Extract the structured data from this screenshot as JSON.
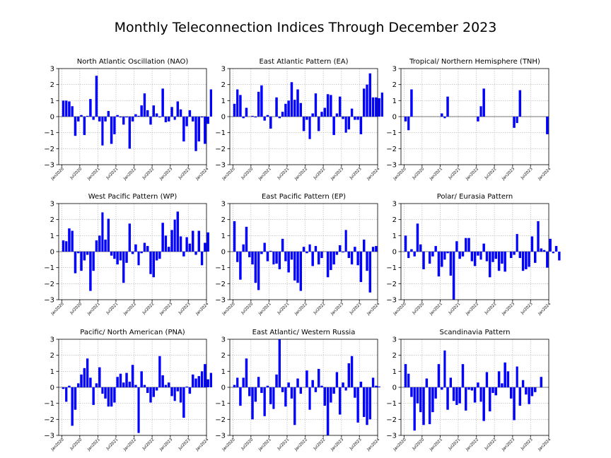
{
  "suptitle": "Monthly Teleconnection Indices Through December 2023",
  "style": {
    "bar_color": "#0000ff",
    "grid_color": "#b0b0b0",
    "axis_color": "#000000"
  },
  "chart_data": [
    {
      "type": "bar",
      "title": "North Atlantic Oscillation (NAO)",
      "ylim": [
        -3,
        3
      ],
      "yticks": [
        -3,
        -2,
        -1,
        0,
        1,
        2,
        3
      ],
      "xlim": [
        "2019-12-01",
        "2024-01-01"
      ],
      "xticks": [
        "Jan2020",
        "Jul2020",
        "Jan2021",
        "Jul2021",
        "Jan2022",
        "Jul2022",
        "Jan2023",
        "Jul2023",
        "Jan2024"
      ],
      "grid": true,
      "start_month": "2020-01",
      "values": [
        1.0,
        1.0,
        0.95,
        0.65,
        -1.2,
        -0.3,
        0.1,
        -1.15,
        0.05,
        1.1,
        -0.2,
        2.55,
        -0.3,
        -1.8,
        -0.3,
        0.35,
        -1.7,
        -1.1,
        0.1,
        -0.05,
        -0.5,
        -0.05,
        -2.0,
        -0.3,
        0.15,
        0.05,
        0.7,
        1.45,
        0.4,
        -0.5,
        0.7,
        0.2,
        -0.05,
        1.75,
        -0.35,
        -0.3,
        0.6,
        -0.2,
        0.95,
        0.45,
        -1.55,
        -0.6,
        0.4,
        -0.3,
        -2.15,
        -1.55,
        -0.05,
        -1.7,
        -0.45,
        1.7
      ]
    },
    {
      "type": "bar",
      "title": "East Atlantic Pattern (EA)",
      "ylim": [
        -3,
        3
      ],
      "yticks": [
        -3,
        -2,
        -1,
        0,
        1,
        2,
        3
      ],
      "xlim": [
        "2019-12-01",
        "2024-01-01"
      ],
      "xticks": [
        "Jan2020",
        "Jul2020",
        "Jan2021",
        "Jul2021",
        "Jan2022",
        "Jul2022",
        "Jan2023",
        "Jul2023",
        "Jan2024"
      ],
      "grid": true,
      "start_month": "2020-01",
      "values": [
        0.8,
        1.7,
        1.35,
        -0.1,
        0.55,
        0.0,
        0.05,
        -0.05,
        1.55,
        1.95,
        -0.25,
        0.1,
        -0.75,
        0.0,
        1.2,
        -0.1,
        0.3,
        0.8,
        1.0,
        2.15,
        1.05,
        1.7,
        0.85,
        -0.9,
        -0.2,
        -1.4,
        0.2,
        1.45,
        -0.9,
        0.3,
        0.55,
        1.4,
        1.35,
        -1.15,
        0.2,
        1.25,
        -0.15,
        -1.0,
        -0.8,
        0.5,
        -0.2,
        -0.2,
        -1.1,
        1.75,
        2.0,
        2.7,
        1.2,
        1.2,
        1.15,
        1.5
      ]
    },
    {
      "type": "bar",
      "title": "Tropical/ Northern Hemisphere (TNH)",
      "ylim": [
        -3,
        3
      ],
      "yticks": [
        -3,
        -2,
        -1,
        0,
        1,
        2,
        3
      ],
      "xlim": [
        "2019-12-01",
        "2024-01-01"
      ],
      "xticks": [
        "Jan2020",
        "Jul2020",
        "Jan2021",
        "Jul2021",
        "Jan2022",
        "Jul2022",
        "Jan2023",
        "Jul2023",
        "Jan2024"
      ],
      "grid": true,
      "start_month": "2020-01",
      "values": [
        -0.3,
        -0.85,
        1.7,
        0,
        0,
        0,
        0,
        0,
        0,
        0,
        0,
        0,
        0.2,
        -0.1,
        1.25,
        0,
        0,
        0,
        0,
        0,
        0,
        0,
        0,
        0,
        -0.3,
        0.65,
        1.75,
        0,
        0,
        0,
        0,
        0,
        0,
        0,
        0,
        0,
        -0.7,
        -0.4,
        1.65,
        0,
        0,
        0,
        0,
        0,
        0,
        0,
        0,
        -1.1
      ]
    },
    {
      "type": "bar",
      "title": "West Pacific Pattern (WP)",
      "ylim": [
        -3,
        3
      ],
      "yticks": [
        -3,
        -2,
        -1,
        0,
        1,
        2,
        3
      ],
      "xlim": [
        "2019-12-01",
        "2024-01-01"
      ],
      "xticks": [
        "Jan2020",
        "Jul2020",
        "Jan2021",
        "Jul2021",
        "Jan2022",
        "Jul2022",
        "Jan2023",
        "Jul2023",
        "Jan2024"
      ],
      "grid": true,
      "start_month": "2020-01",
      "values": [
        0.7,
        0.65,
        1.45,
        1.3,
        -1.35,
        -0.1,
        -1.2,
        -0.55,
        -0.2,
        -2.45,
        -1.2,
        0.7,
        1.0,
        2.45,
        0.75,
        2.05,
        -0.25,
        -0.45,
        -0.8,
        -0.55,
        -1.95,
        -0.7,
        1.75,
        -0.15,
        0.45,
        -0.85,
        -0.1,
        0.55,
        0.35,
        -1.4,
        -1.6,
        -0.55,
        -0.45,
        1.8,
        1.0,
        0.3,
        1.35,
        2.0,
        2.5,
        0.95,
        -0.3,
        0.9,
        0.5,
        1.3,
        -0.2,
        1.3,
        -0.85,
        0.55,
        1.2
      ]
    },
    {
      "type": "bar",
      "title": "East Pacific Pattern (EP)",
      "ylim": [
        -3,
        3
      ],
      "yticks": [
        -3,
        -2,
        -1,
        0,
        1,
        2,
        3
      ],
      "xlim": [
        "2019-12-01",
        "2024-01-01"
      ],
      "xticks": [
        "Jan2020",
        "Jul2020",
        "Jan2021",
        "Jul2021",
        "Jan2022",
        "Jul2022",
        "Jan2023",
        "Jul2023",
        "Jan2024"
      ],
      "grid": true,
      "start_month": "2020-01",
      "values": [
        1.9,
        -0.65,
        -1.75,
        0.45,
        1.55,
        -0.35,
        -0.8,
        -1.95,
        -2.4,
        -0.15,
        0.55,
        -0.6,
        0.05,
        -0.8,
        -0.75,
        -1.1,
        0.8,
        -0.6,
        -1.3,
        -0.5,
        -1.8,
        -1.95,
        -2.45,
        0.3,
        -0.1,
        0.45,
        -0.9,
        0.35,
        -0.8,
        -0.4,
        0.0,
        -1.6,
        -1.15,
        -0.8,
        -0.2,
        0.4,
        -0.05,
        1.35,
        -0.4,
        -0.8,
        0.3,
        -0.85,
        -1.9,
        0.75,
        -1.2,
        -2.55,
        0.3,
        0.35
      ]
    },
    {
      "type": "bar",
      "title": "Polar/ Eurasia Pattern",
      "ylim": [
        -3,
        3
      ],
      "yticks": [
        -3,
        -2,
        -1,
        0,
        1,
        2,
        3
      ],
      "xlim": [
        "2019-12-01",
        "2024-01-01"
      ],
      "xticks": [
        "Jan2020",
        "Jul2020",
        "Jan2021",
        "Jul2021",
        "Jan2022",
        "Jul2022",
        "Jan2023",
        "Jul2023",
        "Jan2024"
      ],
      "grid": true,
      "start_month": "2020-01",
      "values": [
        1.0,
        -0.4,
        0.15,
        -0.3,
        1.75,
        0.45,
        -1.1,
        0.0,
        -0.75,
        -0.3,
        0.35,
        -1.55,
        -0.95,
        -0.5,
        -0.1,
        -1.5,
        -3.0,
        0.65,
        -0.45,
        -0.3,
        0.85,
        0.85,
        -0.6,
        -0.9,
        -0.25,
        -0.5,
        0.5,
        -0.6,
        -1.6,
        -0.65,
        -0.45,
        -1.2,
        -0.75,
        -1.25,
        0.0,
        -0.4,
        -0.2,
        1.1,
        -0.4,
        -1.2,
        -1.1,
        -0.95,
        0.95,
        -0.7,
        1.9,
        0.2,
        0.1,
        -1.0,
        0.8,
        -0.1,
        0.35,
        -0.55
      ]
    },
    {
      "type": "bar",
      "title": "Pacific/ North American (PNA)",
      "ylim": [
        -3,
        3
      ],
      "yticks": [
        -3,
        -2,
        -1,
        0,
        1,
        2,
        3
      ],
      "xlim": [
        "2019-12-01",
        "2024-01-01"
      ],
      "xticks": [
        "Jan2020",
        "Jul2020",
        "Jan2021",
        "Jul2021",
        "Jan2022",
        "Jul2022",
        "Jan2023",
        "Jul2023",
        "Jan2024"
      ],
      "grid": true,
      "start_month": "2020-01",
      "values": [
        -0.1,
        -0.9,
        0.1,
        -2.4,
        -1.4,
        0.25,
        0.8,
        1.2,
        1.8,
        0.6,
        -1.1,
        0.25,
        1.25,
        -0.4,
        -0.7,
        -1.2,
        -1.2,
        -0.95,
        0.65,
        0.85,
        0.3,
        0.9,
        0.35,
        1.4,
        0.15,
        -2.85,
        1.0,
        0.15,
        -0.35,
        -0.95,
        -0.6,
        -0.2,
        1.95,
        0.75,
        0.15,
        0.3,
        -0.55,
        -0.85,
        -0.25,
        -0.95,
        -1.9,
        0.05,
        -0.4,
        0.8,
        0.55,
        0.7,
        1.0,
        1.45,
        0.5,
        0.9
      ]
    },
    {
      "type": "bar",
      "title": "East Atlantic/ Western Russia",
      "ylim": [
        -3,
        3
      ],
      "yticks": [
        -3,
        -2,
        -1,
        0,
        1,
        2,
        3
      ],
      "xlim": [
        "2019-12-01",
        "2024-01-01"
      ],
      "xticks": [
        "Jan2020",
        "Jul2020",
        "Jan2021",
        "Jul2021",
        "Jan2022",
        "Jul2022",
        "Jan2023",
        "Jul2023",
        "Jan2024"
      ],
      "grid": true,
      "start_month": "2020-01",
      "values": [
        0.15,
        0.6,
        -1.15,
        0.6,
        1.8,
        -0.55,
        -2.0,
        -0.9,
        0.65,
        -0.35,
        -1.8,
        0.1,
        -1.05,
        -1.35,
        0.8,
        3.0,
        -0.3,
        -1.2,
        0.3,
        -0.7,
        -2.35,
        0.55,
        -0.4,
        0.0,
        1.05,
        -1.4,
        0.45,
        -0.3,
        1.15,
        0.1,
        -1.15,
        -3.0,
        -0.95,
        -0.4,
        0.95,
        -1.7,
        0.3,
        -0.2,
        1.5,
        1.95,
        -0.65,
        -2.2,
        0.35,
        -1.85,
        -2.35,
        -2.0,
        0.6,
        0.1,
        0.05
      ]
    },
    {
      "type": "bar",
      "title": "Scandinavia Pattern",
      "ylim": [
        -3,
        3
      ],
      "yticks": [
        -3,
        -2,
        -1,
        0,
        1,
        2,
        3
      ],
      "xlim": [
        "2019-12-01",
        "2024-01-01"
      ],
      "xticks": [
        "Jan2020",
        "Jul2020",
        "Jan2021",
        "Jul2021",
        "Jan2022",
        "Jul2022",
        "Jan2023",
        "Jul2023",
        "Jan2024"
      ],
      "grid": true,
      "start_month": "2020-01",
      "values": [
        1.45,
        0.85,
        -0.6,
        -2.7,
        -1.0,
        -1.55,
        -2.35,
        0.55,
        -2.3,
        -1.55,
        -0.7,
        1.45,
        -0.15,
        2.3,
        -1.4,
        0.6,
        -0.85,
        -1.1,
        -1.0,
        1.45,
        -1.45,
        -0.15,
        -0.2,
        -0.95,
        0.3,
        -0.9,
        -2.1,
        0.95,
        -1.5,
        -0.35,
        -0.5,
        1.0,
        0.25,
        1.55,
        1.0,
        -0.7,
        -2.05,
        1.3,
        -1.15,
        0.45,
        -0.45,
        -1.05,
        -0.55,
        -0.3,
        0.0,
        0.65
      ]
    }
  ]
}
